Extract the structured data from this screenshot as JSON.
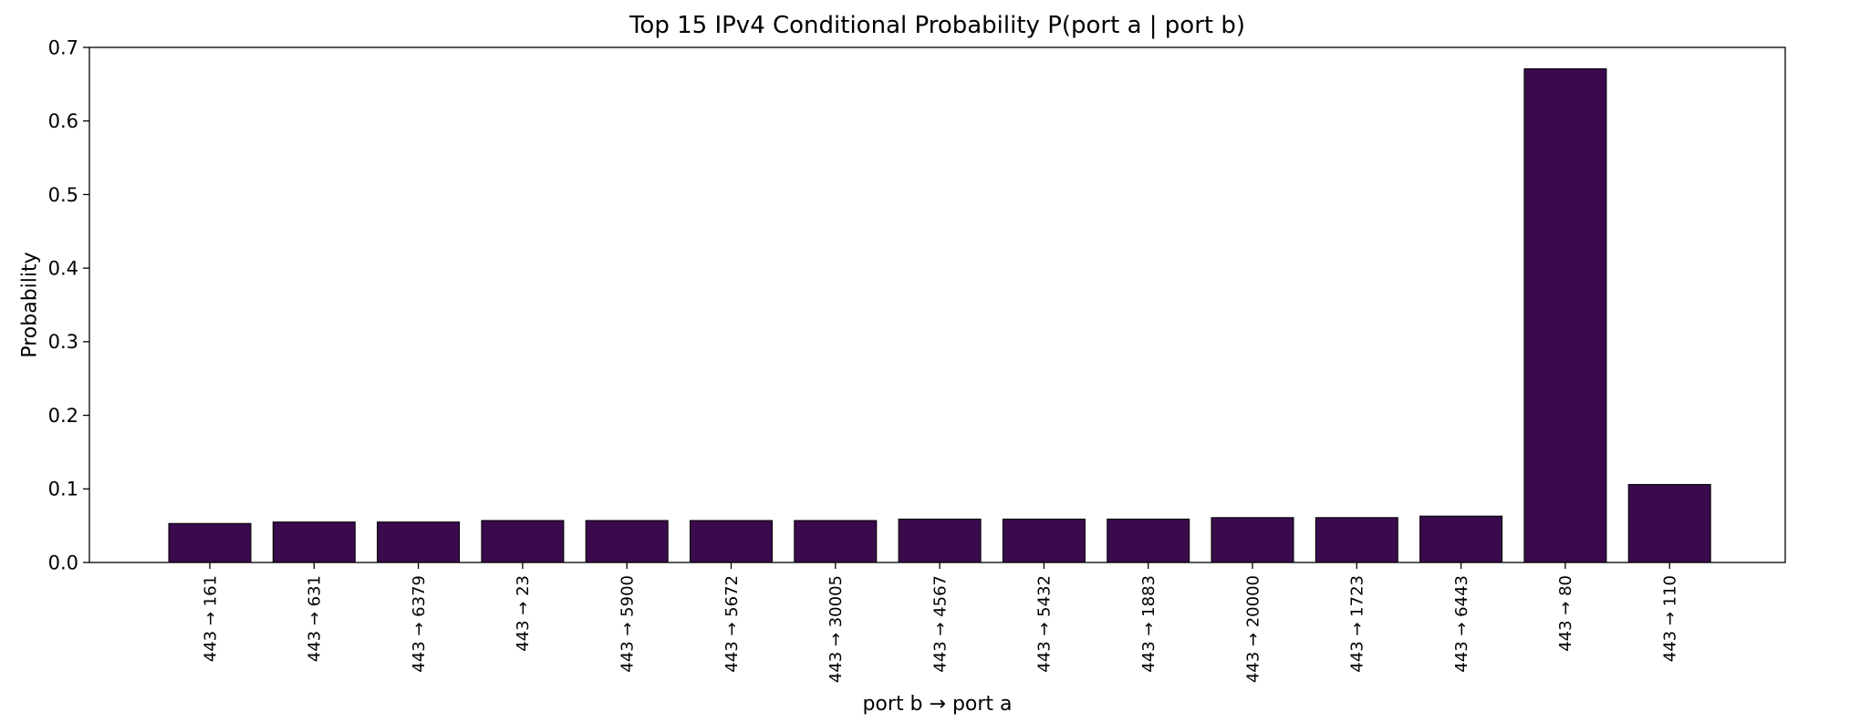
{
  "chart_data": {
    "type": "bar",
    "title": "Top 15 IPv4 Conditional Probability P(port a | port b)",
    "xlabel": "port b → port a",
    "ylabel": "Probability",
    "ylim": [
      0,
      0.7
    ],
    "yticks": [
      "0.0",
      "0.1",
      "0.2",
      "0.3",
      "0.4",
      "0.5",
      "0.6",
      "0.7"
    ],
    "categories": [
      "443 → 161",
      "443 → 631",
      "443 → 6379",
      "443 → 23",
      "443 → 5900",
      "443 → 5672",
      "443 → 30005",
      "443 → 4567",
      "443 → 5432",
      "443 → 1883",
      "443 → 20000",
      "443 → 1723",
      "443 → 6443",
      "443 → 80",
      "443 → 110"
    ],
    "values": [
      0.053,
      0.055,
      0.055,
      0.057,
      0.057,
      0.057,
      0.057,
      0.059,
      0.059,
      0.059,
      0.061,
      0.061,
      0.063,
      0.671,
      0.106
    ],
    "bar_color": "#3b0a4d",
    "grid": false
  }
}
